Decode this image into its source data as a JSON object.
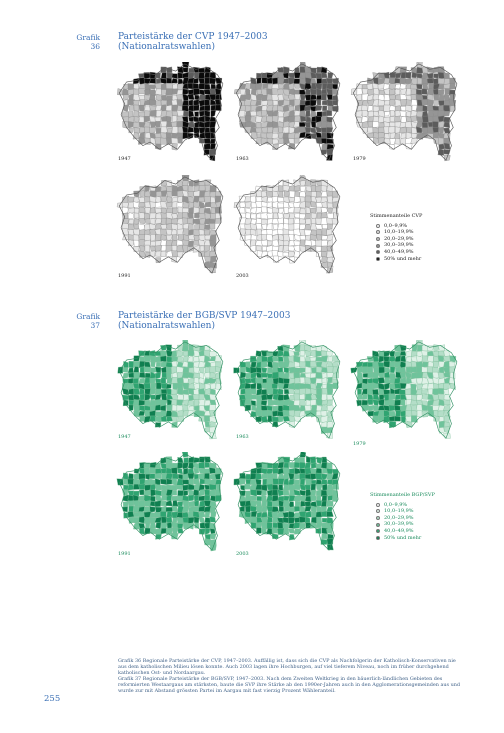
{
  "grafik36": {
    "label": "Grafik",
    "number": "36",
    "title_line1": "Parteistärke der CVP 1947–2003",
    "title_line2": "(Nationalratswahlen)",
    "years": [
      "1947",
      "1963",
      "1979",
      "1991",
      "2003"
    ],
    "legend_title": "Stimmenanteile CVP",
    "legend": [
      "0,0–9,9%",
      "10,0–19,9%",
      "20,0–29,9%",
      "30,0–39,9%",
      "40,0–49,9%",
      "50% und mehr"
    ],
    "palette": [
      "#ffffff",
      "#e6e6e6",
      "#c4c4c4",
      "#959595",
      "#5c5c5c",
      "#0a0a0a"
    ]
  },
  "grafik37": {
    "label": "Grafik",
    "number": "37",
    "title_line1": "Parteistärke der BGB/SVP 1947–2003",
    "title_line2": "(Nationalratswahlen)",
    "years": [
      "1947",
      "1963",
      "1979",
      "1991",
      "2003"
    ],
    "legend_title": "Stimmenanteile BGP/SVP",
    "legend": [
      "0,0–9,9%",
      "10,0–19,9%",
      "20,0–29,9%",
      "30,0–39,9%",
      "40,0–49,9%",
      "50% und mehr"
    ],
    "palette": [
      "#ffffff",
      "#dff1e7",
      "#b4dec8",
      "#6fc39b",
      "#2fa471",
      "#0f7f50"
    ]
  },
  "caption": {
    "p1": "Grafik 36     Regionale Parteistärke der CVP, 1947–2003. Auffällig ist, dass sich die CVP als Nachfolgerin der Katholisch-Konservativen nie aus dem katholischen Milieu lösen konnte. Auch 2003 lagen ihre Hochburgen, auf viel tieferem Niveau, noch im früher durchgehend katholischen Ost- und Nordaargau.",
    "p2": "Grafik 37     Regionale Parteistärke der BGB/SVP, 1947–2003. Nach dem Zweiten Weltkrieg in den bäuerlich-ländlichen Gebieten des reformierten Westaargaus am stärksten, baute die SVP ihre Stärke ab den 1990er-Jahren auch in den Agglomerationsgemeinden aus und wurde zur mit Abstand grössten Partei im Aargau mit fast vierzig Prozent Wähleranteil."
  },
  "page_number": "255"
}
